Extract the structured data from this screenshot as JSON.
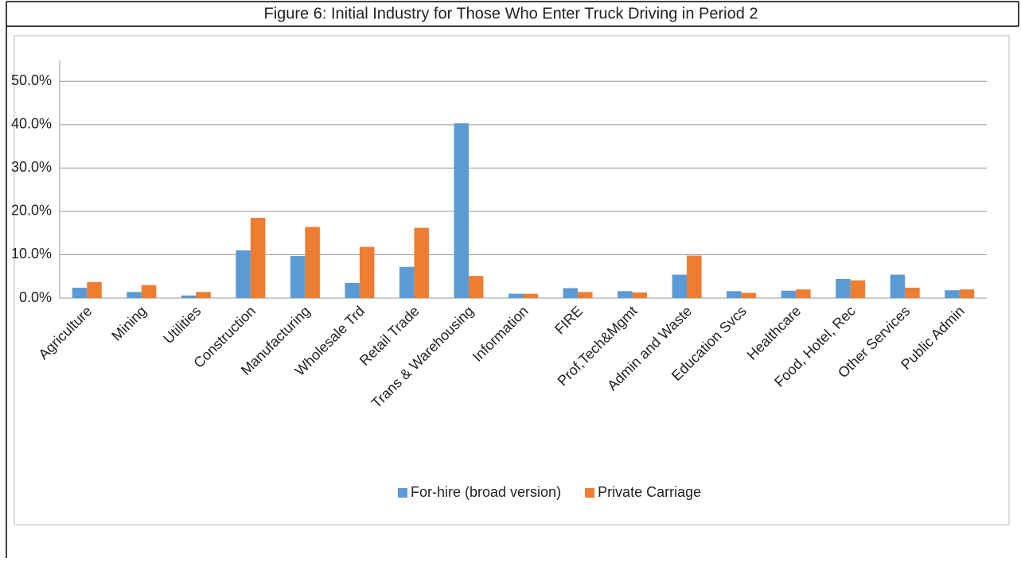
{
  "chart_data": {
    "type": "bar",
    "title": "Figure 6:  Initial Industry for Those Who Enter Truck Driving in Period 2",
    "categories": [
      "Agriculture",
      "Mining",
      "Utilities",
      "Construction",
      "Manufacturing",
      "Wholesale Trd",
      "Retail Trade",
      "Trans & Warehousing",
      "Information",
      "FIRE",
      "Prof,Tech&Mgmt",
      "Admin and Waste",
      "Education Svcs",
      "Healthcare",
      "Food, Hotel, Rec",
      "Other Services",
      "Public Admin"
    ],
    "series": [
      {
        "name": "For-hire (broad version)",
        "color": "#5b9bd5",
        "values": [
          2.4,
          1.4,
          0.6,
          11.0,
          9.7,
          3.5,
          7.2,
          40.3,
          1.0,
          2.3,
          1.6,
          5.4,
          1.6,
          1.7,
          4.4,
          5.4,
          1.8
        ]
      },
      {
        "name": "Private Carriage",
        "color": "#ed7d31",
        "values": [
          3.7,
          3.0,
          1.4,
          18.5,
          16.4,
          11.8,
          16.2,
          5.1,
          1.0,
          1.4,
          1.3,
          9.8,
          1.2,
          2.0,
          4.1,
          2.4,
          2.0
        ]
      }
    ],
    "ylim": [
      0,
      55
    ],
    "yticks": [
      {
        "value": 0,
        "label": "0.0%"
      },
      {
        "value": 10,
        "label": "10.0%"
      },
      {
        "value": 20,
        "label": "20.0%"
      },
      {
        "value": 30,
        "label": "30.0%"
      },
      {
        "value": 40,
        "label": "40.0%"
      },
      {
        "value": 50,
        "label": "50.0%"
      }
    ],
    "grid": true,
    "legend": "bottom"
  }
}
